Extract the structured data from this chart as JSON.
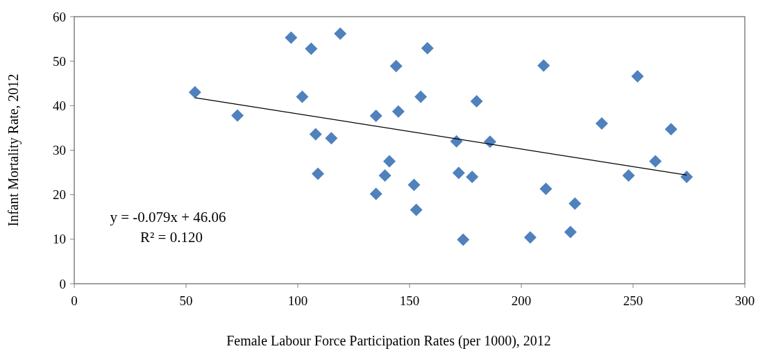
{
  "chart_data": {
    "type": "scatter",
    "xlabel": "Female Labour Force Participation Rates (per 1000), 2012",
    "ylabel": "Infant Mortality Rate, 2012",
    "x": [
      54,
      73,
      97,
      106,
      102,
      108,
      109,
      115,
      119,
      135,
      135,
      139,
      141,
      144,
      145,
      152,
      153,
      155,
      158,
      171,
      172,
      174,
      178,
      180,
      186,
      204,
      210,
      211,
      222,
      224,
      236,
      248,
      252,
      260,
      267,
      274
    ],
    "series": [
      {
        "color": "#4f81bd",
        "marker": "diamond",
        "values": [
          43,
          37.8,
          55.3,
          52.8,
          42,
          33.6,
          24.7,
          32.7,
          56.2,
          37.7,
          20.2,
          24.3,
          27.5,
          48.9,
          38.7,
          22.2,
          16.6,
          42,
          52.9,
          32,
          24.9,
          9.9,
          24,
          41,
          31.9,
          10.4,
          49,
          21.3,
          11.6,
          18,
          36,
          24.3,
          46.6,
          27.5,
          34.7,
          24
        ]
      },
      {
        "type": "line",
        "color": "#000000",
        "marker": "none",
        "x": [
          54,
          274
        ],
        "values": [
          41.8,
          24.4
        ]
      }
    ],
    "xlim": [
      0,
      300
    ],
    "xticks": [
      0,
      50,
      100,
      150,
      200,
      250,
      300
    ],
    "ylim": [
      0,
      60
    ],
    "yticks": [
      0,
      10,
      20,
      30,
      40,
      50,
      60
    ],
    "grid": false,
    "annotations": [
      "y = -0.079x + 46.06",
      "R² = 0.120"
    ]
  }
}
